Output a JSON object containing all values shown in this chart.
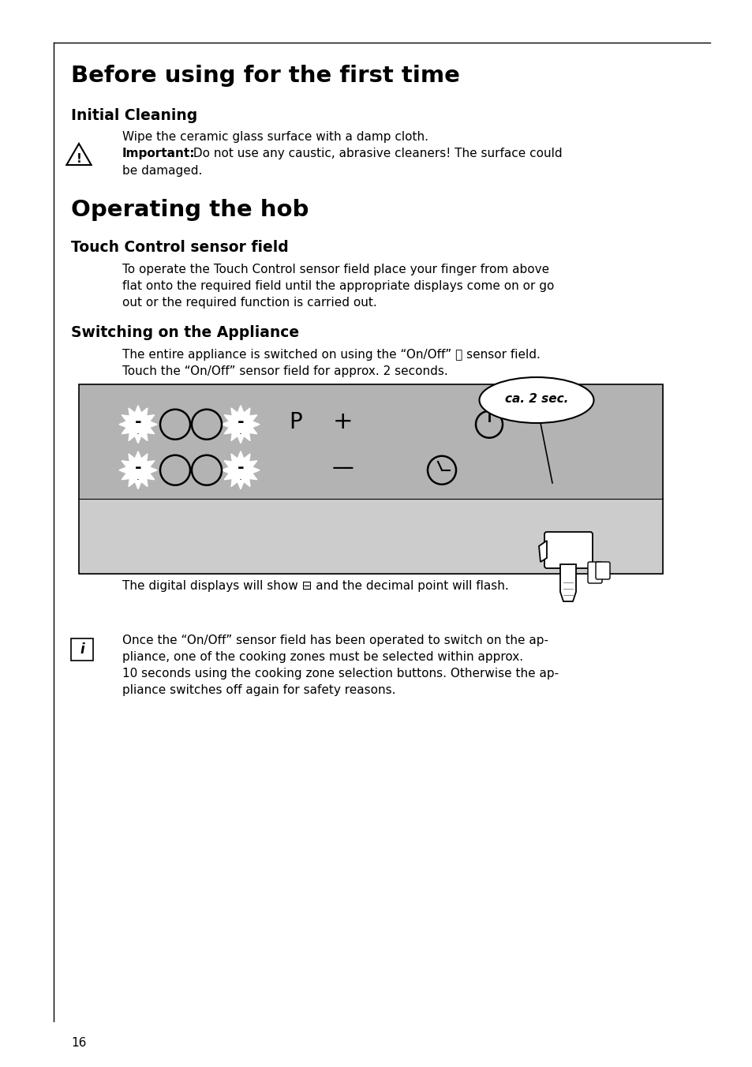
{
  "page_num": "16",
  "bg_color": "#ffffff",
  "border_color": "#000000",
  "title1": "Before using for the first time",
  "subtitle1": "Initial Cleaning",
  "body1": "Wipe the ceramic glass surface with a damp cloth.",
  "important_label": "Important:",
  "important_line1": " Do not use any caustic, abrasive cleaners! The surface could",
  "important_line2": "be damaged.",
  "title2": "Operating the hob",
  "subtitle2": "Touch Control sensor field",
  "body2_line1": "To operate the Touch Control sensor field place your finger from above",
  "body2_line2": "flat onto the required field until the appropriate displays come on or go",
  "body2_line3": "out or the required function is carried out.",
  "subtitle3": "Switching on the Appliance",
  "body3_line1": "The entire appliance is switched on using the “On/Off” ⓪ sensor field.",
  "body3_line2": "Touch the “On/Off” sensor field for approx. 2 seconds.",
  "callout_text": "ca. 2 sec.",
  "caption_line": "The digital displays will show ⊟ and the decimal point will flash.",
  "info_line1": "Once the “On/Off” sensor field has been operated to switch on the ap-",
  "info_line2": "pliance, one of the cooking zones must be selected within approx.",
  "info_line3": "10 seconds using the cooking zone selection buttons. Otherwise the ap-",
  "info_line4": "pliance switches off again for safety reasons.",
  "panel_bg": "#b3b3b3",
  "panel_lower_bg": "#d0d0d0",
  "panel_border": "#000000",
  "white": "#ffffff",
  "black": "#000000"
}
